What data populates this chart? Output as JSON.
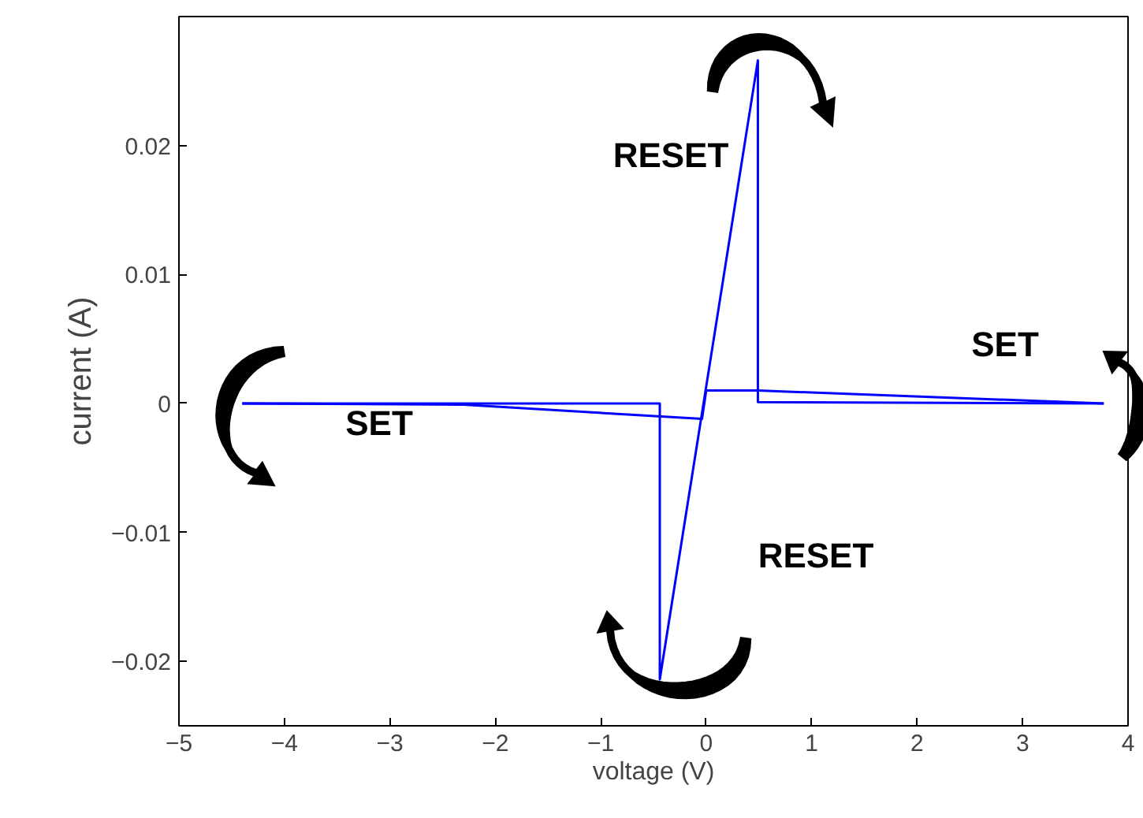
{
  "chart_data": {
    "type": "line",
    "xlabel": "voltage (V)",
    "ylabel": "current (A)",
    "xlim": [
      -5,
      4
    ],
    "xticks": [
      -5,
      -4,
      -3,
      -2,
      -1,
      0,
      1,
      2,
      3,
      4
    ],
    "ylim": [
      -0.025,
      0.03
    ],
    "yticks": [
      -0.02,
      -0.01,
      0,
      0.01,
      0.02
    ],
    "grid": false,
    "marker": "none",
    "line_style": "solid",
    "series": [
      {
        "color": "#0000ff",
        "x": [
          -4.4,
          -0.44,
          -0.44,
          0.49,
          0.49,
          3.77
        ],
        "values": [
          0,
          0,
          -0.0214,
          0.0266,
          0.0001,
          0
        ]
      },
      {
        "color": "#0000ff",
        "x": [
          -4.4,
          -2.3,
          -0.04,
          0.0,
          0.49,
          3.77
        ],
        "values": [
          0,
          -0.0001,
          -0.0012,
          0.001,
          0.001,
          0
        ]
      }
    ],
    "annotations": [
      "RESET",
      "RESET",
      "SET",
      "SET"
    ]
  }
}
